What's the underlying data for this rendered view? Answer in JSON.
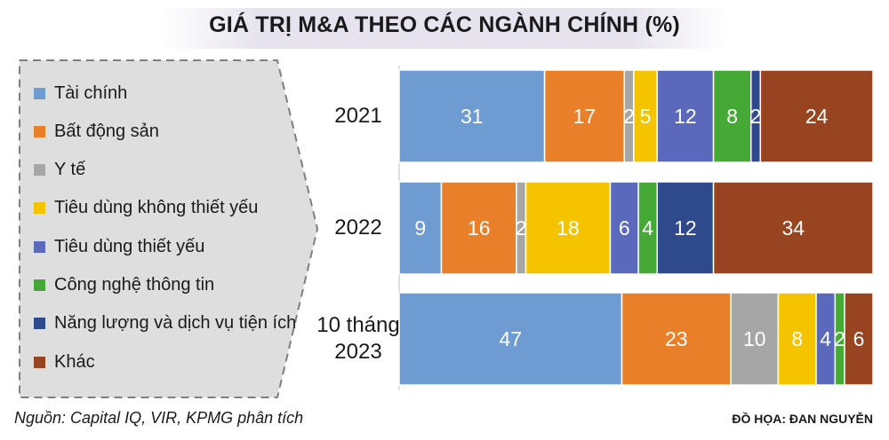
{
  "header": {
    "title": "GIÁ TRỊ M&A THEO CÁC NGÀNH CHÍNH (%)"
  },
  "footer": {
    "source": "Nguồn: Capital IQ, VIR, KPMG phân tích",
    "credit": "ĐỒ HỌA: ĐAN NGUYỄN"
  },
  "chart_data": {
    "type": "bar",
    "orientation": "horizontal",
    "stacked": true,
    "title": "GIÁ TRỊ M&A THEO CÁC NGÀNH CHÍNH (%)",
    "categories": [
      [
        "2021"
      ],
      [
        "2022"
      ],
      [
        "10 tháng",
        "2023"
      ]
    ],
    "series": [
      {
        "name": "Tài chính",
        "color": "#6f9bd3",
        "values": [
          31,
          9,
          47
        ]
      },
      {
        "name": "Bất động sản",
        "color": "#ea7f2a",
        "values": [
          17,
          16,
          23
        ]
      },
      {
        "name": "Y tế",
        "color": "#a6a6a6",
        "values": [
          2,
          2,
          10
        ]
      },
      {
        "name": "Tiêu dùng không thiết yếu",
        "color": "#f4c400",
        "values": [
          5,
          18,
          8
        ]
      },
      {
        "name": "Tiêu dùng thiết yếu",
        "color": "#5b69bc",
        "values": [
          12,
          6,
          4
        ]
      },
      {
        "name": "Công nghệ thông tin",
        "color": "#45a935",
        "values": [
          8,
          4,
          2
        ]
      },
      {
        "name": "Năng lượng và dịch vụ tiện ích",
        "color": "#2e4a8c",
        "values": [
          2,
          12,
          0
        ]
      },
      {
        "name": "Khác",
        "color": "#984420",
        "values": [
          24,
          34,
          6
        ]
      }
    ],
    "data_labels": true,
    "legend": "left",
    "grid": false
  }
}
